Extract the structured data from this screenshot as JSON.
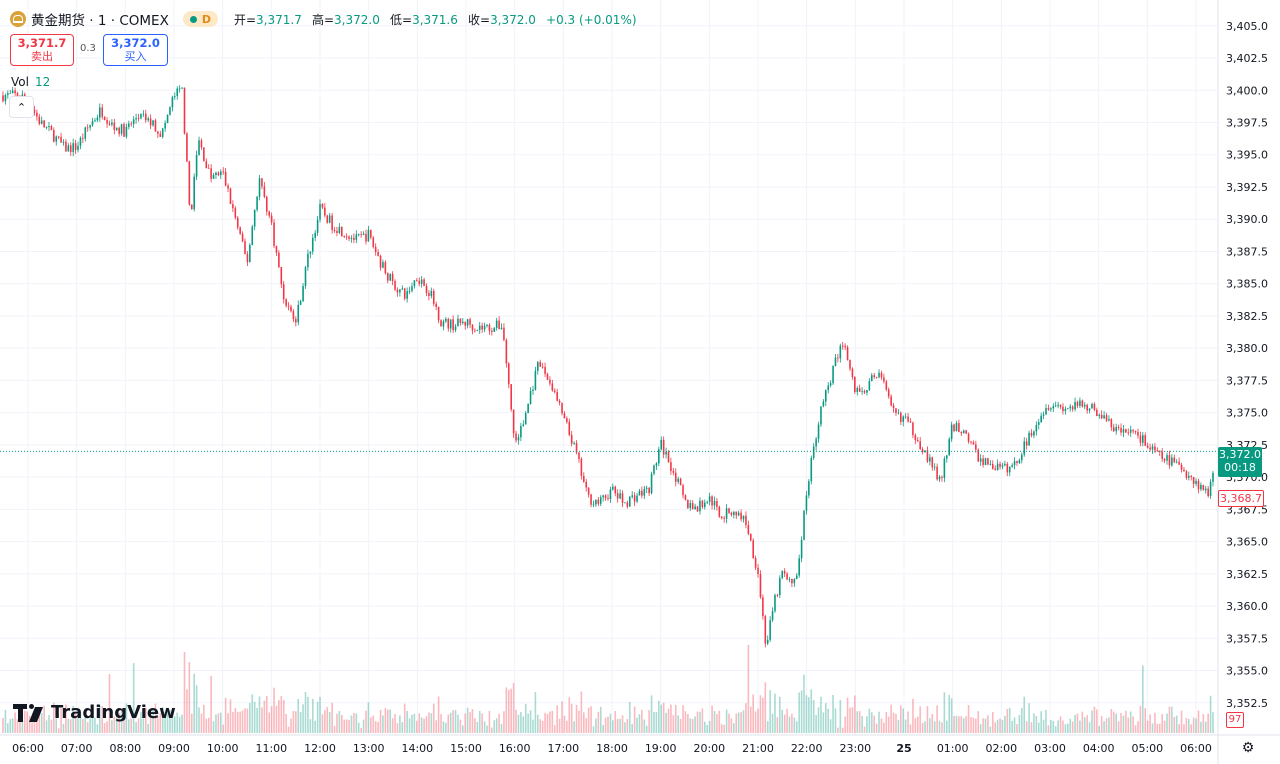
{
  "header": {
    "symbol_title": "黄金期货 · 1 · COMEX",
    "interval_badge": "D",
    "ohlc": [
      {
        "k": "开=",
        "v": "3,371.7"
      },
      {
        "k": "高=",
        "v": "3,372.0"
      },
      {
        "k": "低=",
        "v": "3,371.6"
      },
      {
        "k": "收=",
        "v": "3,372.0"
      }
    ],
    "change": "+0.3 (+0.01%)"
  },
  "trade": {
    "sell_price": "3,371.7",
    "sell_label": "卖出",
    "spread": "0.3",
    "buy_price": "3,372.0",
    "buy_label": "买入"
  },
  "volume_legend": {
    "label": "Vol",
    "value": "12"
  },
  "collapse_icon": "chevron-up-icon",
  "logo_text": "TradingView",
  "price_labels": {
    "last": "3,372.0",
    "countdown": "00:18",
    "bid": "3,368.7",
    "volume": "97"
  },
  "colors": {
    "up": "#089981",
    "down": "#f23645",
    "grid": "#f0f3fa",
    "last_line": "#089981"
  },
  "chart_data": {
    "type": "candlestick",
    "title": "",
    "y_axis": {
      "ylim": [
        3350.0,
        3407.0
      ],
      "ticks": [
        "3,352.5",
        "3,355.0",
        "3,357.5",
        "3,360.0",
        "3,362.5",
        "3,365.0",
        "3,367.5",
        "3,370.0",
        "3,372.5",
        "3,375.0",
        "3,377.5",
        "3,380.0",
        "3,382.5",
        "3,385.0",
        "3,387.5",
        "3,390.0",
        "3,392.5",
        "3,395.0",
        "3,397.5",
        "3,400.0",
        "3,402.5",
        "3,405.0"
      ]
    },
    "x_axis": {
      "ticks": [
        "06:00",
        "07:00",
        "08:00",
        "09:00",
        "10:00",
        "11:00",
        "12:00",
        "13:00",
        "14:00",
        "15:00",
        "16:00",
        "17:00",
        "18:00",
        "19:00",
        "20:00",
        "21:00",
        "22:00",
        "23:00",
        "25",
        "01:00",
        "02:00",
        "03:00",
        "04:00",
        "05:00",
        "06:00"
      ]
    },
    "grid": true,
    "last_price": 3372.0,
    "series": [
      {
        "x": [
          "05:50",
          "06:00",
          "06:15",
          "06:30",
          "06:45",
          "07:00",
          "07:15",
          "07:30",
          "07:45",
          "08:00",
          "08:15",
          "08:30",
          "08:45",
          "09:00",
          "09:10",
          "09:20",
          "09:30",
          "09:45",
          "10:00",
          "10:15",
          "10:30",
          "10:45",
          "11:00",
          "11:15",
          "11:30",
          "11:45",
          "12:00",
          "12:15",
          "12:30",
          "12:45",
          "13:00",
          "13:15",
          "13:30",
          "13:45",
          "14:00",
          "14:15",
          "14:30",
          "14:45",
          "15:00",
          "15:15",
          "15:30",
          "15:45",
          "16:00",
          "16:10",
          "16:20",
          "16:30",
          "16:45",
          "17:00",
          "17:15",
          "17:30",
          "17:45",
          "18:00",
          "18:15",
          "18:30",
          "18:45",
          "19:00",
          "19:15",
          "19:30",
          "19:45",
          "20:00",
          "20:15",
          "20:30",
          "20:45",
          "21:00",
          "21:10",
          "21:20",
          "21:30",
          "21:40",
          "21:50",
          "22:00",
          "22:15",
          "22:30",
          "22:45",
          "23:00",
          "23:15",
          "23:30",
          "23:45",
          "00:00",
          "00:15",
          "00:30",
          "00:45",
          "01:00",
          "01:15",
          "01:30",
          "01:45",
          "02:00",
          "02:15",
          "02:30",
          "02:45",
          "03:00",
          "03:15",
          "03:30",
          "03:45",
          "04:00",
          "04:15",
          "04:30",
          "04:45",
          "05:00",
          "05:15",
          "05:30",
          "05:45",
          "06:00",
          "06:15",
          "06:25"
        ],
        "close": [
          3399.6,
          3399.2,
          3397.5,
          3396.6,
          3395.5,
          3395.6,
          3397.2,
          3398.5,
          3397.2,
          3396.8,
          3398.0,
          3397.6,
          3396.6,
          3399.6,
          3400.0,
          3390.0,
          3396.2,
          3393.2,
          3393.6,
          3390.2,
          3386.6,
          3393.2,
          3389.6,
          3384.0,
          3382.0,
          3387.0,
          3390.8,
          3389.6,
          3389.0,
          3388.4,
          3388.8,
          3386.6,
          3385.0,
          3384.0,
          3385.6,
          3384.4,
          3382.0,
          3381.8,
          3382.0,
          3381.6,
          3381.6,
          3381.8,
          3372.6,
          3374.0,
          3376.6,
          3378.8,
          3377.2,
          3374.6,
          3372.0,
          3368.4,
          3368.0,
          3369.0,
          3368.0,
          3368.6,
          3369.0,
          3372.6,
          3370.6,
          3368.0,
          3367.6,
          3368.4,
          3367.0,
          3367.4,
          3366.6,
          3362.6,
          3356.8,
          3360.2,
          3362.6,
          3361.6,
          3363.0,
          3369.0,
          3374.6,
          3377.8,
          3380.6,
          3376.6,
          3377.0,
          3378.4,
          3375.0,
          3374.6,
          3373.2,
          3371.4,
          3369.6,
          3374.0,
          3373.6,
          3371.6,
          3371.0,
          3370.6,
          3370.8,
          3372.6,
          3374.6,
          3375.8,
          3375.4,
          3375.4,
          3375.6,
          3375.0,
          3374.0,
          3373.4,
          3373.6,
          3372.4,
          3371.6,
          3371.2,
          3370.6,
          3369.6,
          3368.7,
          3372.0
        ]
      }
    ]
  }
}
